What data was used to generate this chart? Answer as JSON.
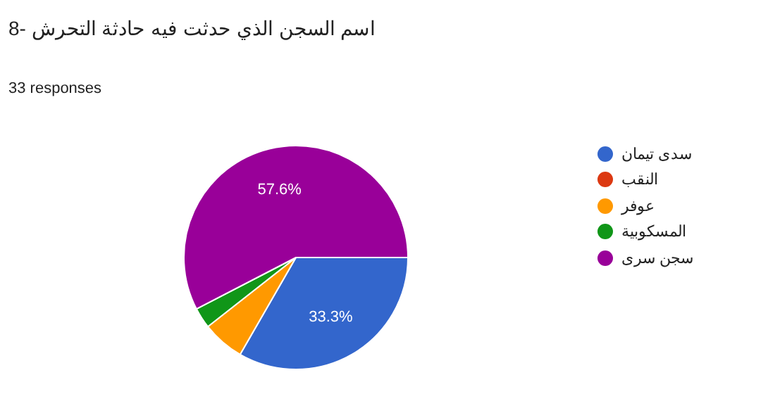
{
  "chart_data": {
    "type": "pie",
    "title": "اسم السجن الذي حدثت فيه حادثة التحرش -8",
    "subtitle": "33 responses",
    "categories": [
      "سدى تيمان",
      "النقب",
      "عوفر",
      "المسكوبية",
      "سجن سرى"
    ],
    "values": [
      33.3,
      0,
      6.1,
      3.0,
      57.6
    ],
    "colors": [
      "#3366cc",
      "#dc3912",
      "#ff9900",
      "#109618",
      "#990099"
    ],
    "value_labels": [
      "33.3%",
      null,
      null,
      null,
      "57.6%"
    ],
    "legend": "right"
  }
}
